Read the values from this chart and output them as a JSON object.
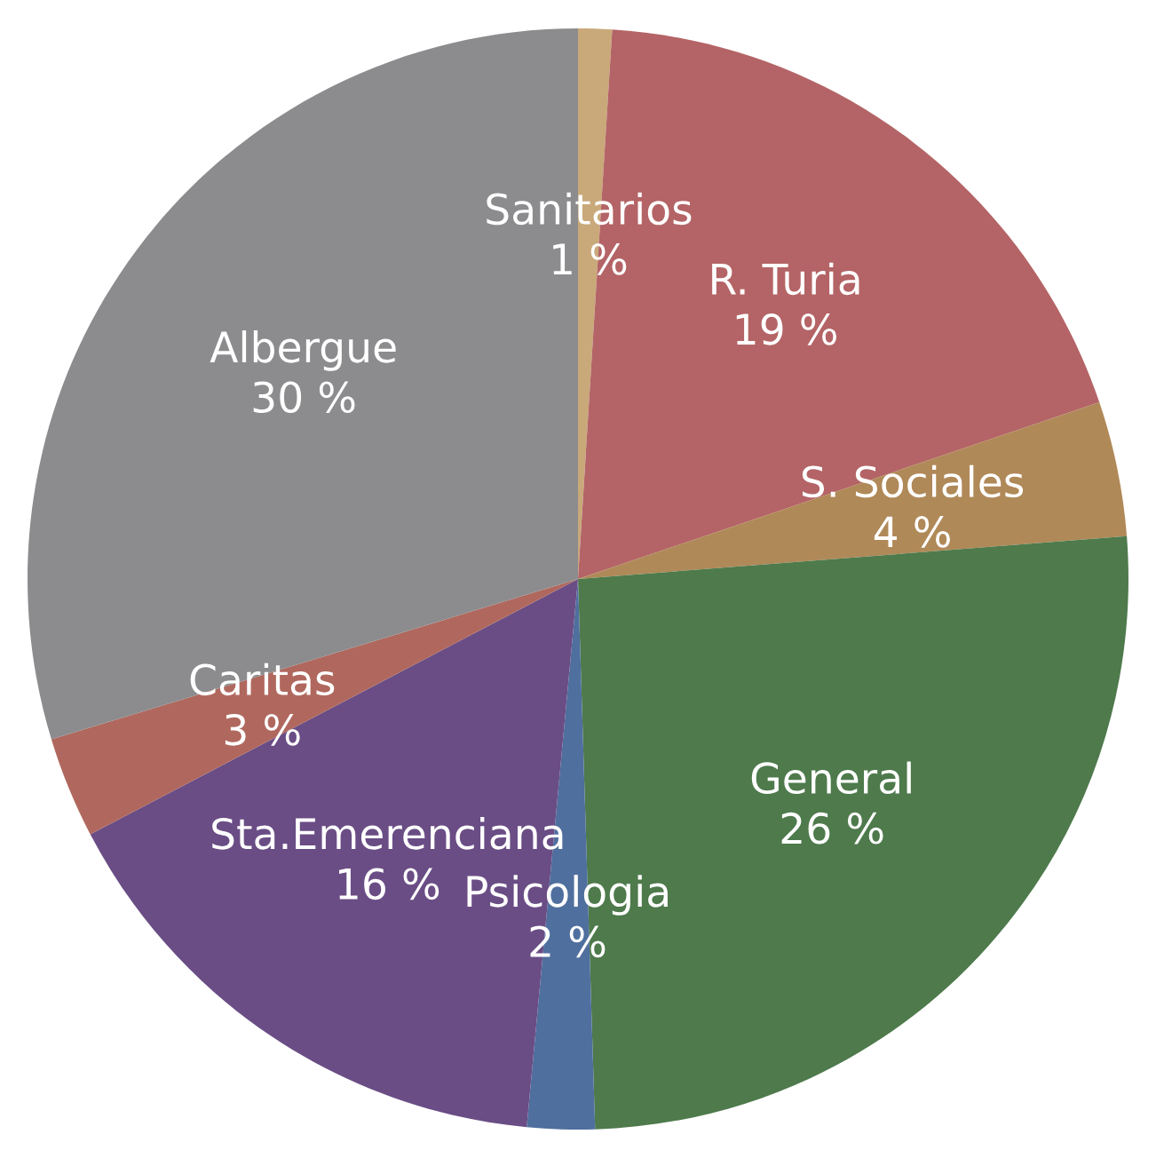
{
  "chart_data": {
    "type": "pie",
    "categories": [
      "Sanitarios",
      "R. Turia",
      "S. Sociales",
      "General",
      "Psicologia",
      "Sta.Emerenciana",
      "Caritas",
      "Albergue"
    ],
    "values": [
      1,
      19,
      4,
      26,
      2,
      16,
      3,
      30
    ],
    "value_labels": [
      "1 %",
      "19 %",
      "4 %",
      "26 %",
      "2 %",
      "16 %",
      "3 %",
      "30 %"
    ],
    "colors": [
      "#c9a97a",
      "#b46466",
      "#b08958",
      "#4e7a4c",
      "#4f6f9e",
      "#6a4d85",
      "#b0685e",
      "#8c8c8e"
    ]
  }
}
